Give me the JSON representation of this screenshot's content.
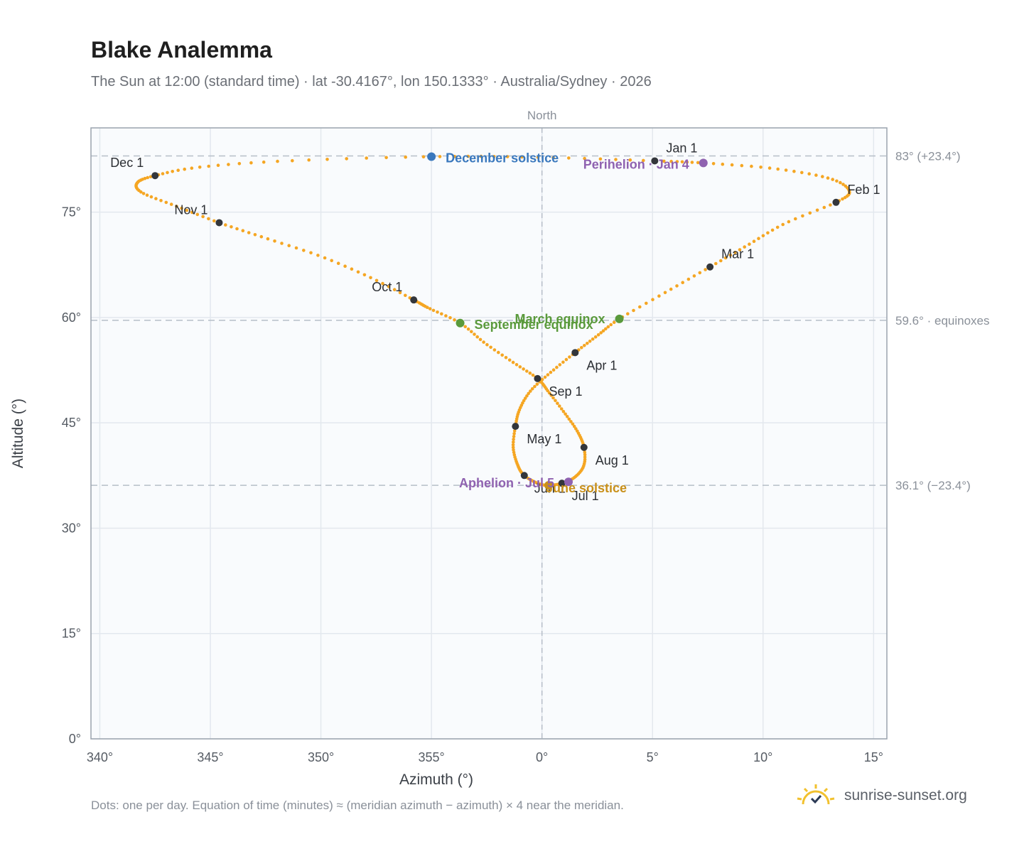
{
  "title": "Blake Analemma",
  "subtitle": "The Sun at 12:00 (standard time) · lat -30.4167°, lon 150.1333° · Australia/Sydney · 2026",
  "footnote": "Dots: one per day. Equation of time (minutes) ≈ (meridian azimuth − azimuth) × 4 near the meridian.",
  "brand": {
    "name": "sunrise-sunset.org",
    "icon": "sun-logo-icon"
  },
  "colors": {
    "curve": "#f5a623",
    "month_marker": "#33363b",
    "december_solstice": "#3a78bd",
    "june_solstice": "#c9901a",
    "equinox": "#5a9a3c",
    "perihelion": "#8f62b0",
    "aphelion": "#8f62b0",
    "plot_bg": "#f9fbfd",
    "grid": "#e3e8ee",
    "reference_line": "#b6bec8"
  },
  "chart_data": {
    "type": "scatter",
    "xlabel": "Azimuth (°)",
    "ylabel": "Altitude (°)",
    "top_label": "North",
    "xlim": [
      339.6,
      15.6
    ],
    "ylim": [
      0,
      87
    ],
    "x_ticks": [
      {
        "value": 340,
        "label": "340°"
      },
      {
        "value": 345,
        "label": "345°"
      },
      {
        "value": 350,
        "label": "350°"
      },
      {
        "value": 355,
        "label": "355°"
      },
      {
        "value": 0,
        "label": "0°"
      },
      {
        "value": 5,
        "label": "5°"
      },
      {
        "value": 10,
        "label": "10°"
      },
      {
        "value": 15,
        "label": "15°"
      }
    ],
    "y_ticks": [
      {
        "value": 0,
        "label": "0°"
      },
      {
        "value": 15,
        "label": "15°"
      },
      {
        "value": 30,
        "label": "30°"
      },
      {
        "value": 45,
        "label": "45°"
      },
      {
        "value": 60,
        "label": "60°"
      },
      {
        "value": 75,
        "label": "75°"
      }
    ],
    "grid": true,
    "meridian_azimuth": 0,
    "reference_lines": [
      {
        "altitude": 83.0,
        "label": "83° (+23.4°)"
      },
      {
        "altitude": 59.6,
        "label": "59.6° · equinoxes"
      },
      {
        "altitude": 36.1,
        "label": "36.1° (−23.4°)"
      }
    ],
    "path_points": [
      {
        "az": 5.1,
        "alt": 82.3
      },
      {
        "az": 7.3,
        "alt": 82.0
      },
      {
        "az": 10.5,
        "alt": 81.2
      },
      {
        "az": 13.0,
        "alt": 79.8
      },
      {
        "az": 13.9,
        "alt": 78.0
      },
      {
        "az": 13.3,
        "alt": 76.4
      },
      {
        "az": 11.0,
        "alt": 73.4
      },
      {
        "az": 9.3,
        "alt": 70.3
      },
      {
        "az": 7.6,
        "alt": 67.2
      },
      {
        "az": 5.6,
        "alt": 63.6
      },
      {
        "az": 3.5,
        "alt": 59.8
      },
      {
        "az": 2.5,
        "alt": 57.4
      },
      {
        "az": 1.5,
        "alt": 55.0
      },
      {
        "az": 0.4,
        "alt": 52.2
      },
      {
        "az": -0.5,
        "alt": 49.6
      },
      {
        "az": -1.0,
        "alt": 47.0
      },
      {
        "az": -1.2,
        "alt": 44.5
      },
      {
        "az": -1.3,
        "alt": 41.5
      },
      {
        "az": -1.1,
        "alt": 39.0
      },
      {
        "az": -0.8,
        "alt": 37.5
      },
      {
        "az": -0.2,
        "alt": 36.4
      },
      {
        "az": 0.3,
        "alt": 36.1
      },
      {
        "az": 0.9,
        "alt": 36.4
      },
      {
        "az": 1.5,
        "alt": 37.3
      },
      {
        "az": 1.9,
        "alt": 39.0
      },
      {
        "az": 1.9,
        "alt": 41.5
      },
      {
        "az": 1.6,
        "alt": 43.8
      },
      {
        "az": 1.0,
        "alt": 46.5
      },
      {
        "az": 0.3,
        "alt": 49.4
      },
      {
        "az": -0.2,
        "alt": 51.3
      },
      {
        "az": -1.3,
        "alt": 53.6
      },
      {
        "az": -2.6,
        "alt": 56.4
      },
      {
        "az": -3.7,
        "alt": 59.2
      },
      {
        "az": -5.1,
        "alt": 61.3
      },
      {
        "az": -5.8,
        "alt": 62.5
      },
      {
        "az": -7.7,
        "alt": 65.6
      },
      {
        "az": -10.0,
        "alt": 68.7
      },
      {
        "az": -12.5,
        "alt": 71.3
      },
      {
        "az": -14.6,
        "alt": 73.5
      },
      {
        "az": -16.5,
        "alt": 75.8
      },
      {
        "az": -18.1,
        "alt": 77.8
      },
      {
        "az": -18.3,
        "alt": 79.2
      },
      {
        "az": -17.5,
        "alt": 80.2
      },
      {
        "az": -15.5,
        "alt": 81.4
      },
      {
        "az": -11.5,
        "alt": 82.3
      },
      {
        "az": -5.0,
        "alt": 82.9
      },
      {
        "az": 0.0,
        "alt": 82.8
      },
      {
        "az": 5.1,
        "alt": 82.3
      }
    ],
    "month_markers": [
      {
        "label": "Jan 1",
        "az": 5.1,
        "alt": 82.3
      },
      {
        "label": "Feb 1",
        "az": 13.3,
        "alt": 76.4
      },
      {
        "label": "Mar 1",
        "az": 7.6,
        "alt": 67.2
      },
      {
        "label": "Apr 1",
        "az": 1.5,
        "alt": 55.0
      },
      {
        "label": "May 1",
        "az": -1.2,
        "alt": 44.5
      },
      {
        "label": "Jun 1",
        "az": -0.8,
        "alt": 37.5
      },
      {
        "label": "Jul 1",
        "az": 0.9,
        "alt": 36.4
      },
      {
        "label": "Aug 1",
        "az": 1.9,
        "alt": 41.5
      },
      {
        "label": "Sep 1",
        "az": -0.2,
        "alt": 51.3
      },
      {
        "label": "Oct 1",
        "az": -5.8,
        "alt": 62.5
      },
      {
        "label": "Nov 1",
        "az": -14.6,
        "alt": 73.5
      },
      {
        "label": "Dec 1",
        "az": -17.5,
        "alt": 80.2
      }
    ],
    "events": [
      {
        "label": "December solstice",
        "az": -5.0,
        "alt": 82.9,
        "color_key": "december_solstice"
      },
      {
        "label": "Perihelion · Jan 4",
        "az": 7.3,
        "alt": 82.0,
        "color_key": "perihelion"
      },
      {
        "label": "March equinox",
        "az": 3.5,
        "alt": 59.8,
        "color_key": "equinox"
      },
      {
        "label": "September equinox",
        "az": -3.7,
        "alt": 59.2,
        "color_key": "equinox"
      },
      {
        "label": "June solstice",
        "az": 0.3,
        "alt": 36.1,
        "color_key": "june_solstice"
      },
      {
        "label": "Aphelion · Jul 5",
        "az": 1.2,
        "alt": 36.6,
        "color_key": "aphelion"
      }
    ]
  }
}
